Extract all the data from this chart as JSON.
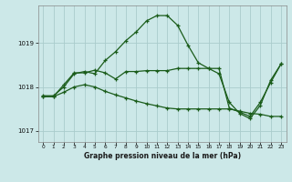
{
  "title": "Graphe pression niveau de la mer (hPa)",
  "background_color": "#cce8e8",
  "grid_color": "#aacccc",
  "line_color": "#1a5c1a",
  "xlim": [
    -0.5,
    23.5
  ],
  "ylim": [
    1016.75,
    1019.85
  ],
  "yticks": [
    1017,
    1018,
    1019
  ],
  "xticks": [
    0,
    1,
    2,
    3,
    4,
    5,
    6,
    7,
    8,
    9,
    10,
    11,
    12,
    13,
    14,
    15,
    16,
    17,
    18,
    19,
    20,
    21,
    22,
    23
  ],
  "series1_x": [
    0,
    1,
    2,
    3,
    4,
    5,
    6,
    7,
    8,
    9,
    10,
    11,
    12,
    13,
    14,
    15,
    16,
    17,
    18,
    19,
    20,
    21,
    22,
    23
  ],
  "series1_y": [
    1017.8,
    1017.8,
    1018.0,
    1018.3,
    1018.35,
    1018.3,
    1018.6,
    1018.8,
    1019.05,
    1019.25,
    1019.5,
    1019.62,
    1019.62,
    1019.4,
    1018.95,
    1018.55,
    1018.42,
    1018.3,
    1017.65,
    1017.4,
    1017.28,
    1017.58,
    1018.15,
    1018.52
  ],
  "series2_x": [
    0,
    1,
    2,
    3,
    4,
    5,
    6,
    7,
    8,
    9,
    10,
    11,
    12,
    13,
    14,
    15,
    16,
    17,
    18,
    19,
    20,
    21,
    22,
    23
  ],
  "series2_y": [
    1017.78,
    1017.78,
    1018.05,
    1018.32,
    1018.32,
    1018.38,
    1018.32,
    1018.18,
    1018.35,
    1018.35,
    1018.37,
    1018.37,
    1018.37,
    1018.42,
    1018.42,
    1018.42,
    1018.42,
    1018.42,
    1017.52,
    1017.43,
    1017.33,
    1017.65,
    1018.1,
    1018.52
  ],
  "series3_x": [
    0,
    1,
    2,
    3,
    4,
    5,
    6,
    7,
    8,
    9,
    10,
    11,
    12,
    13,
    14,
    15,
    16,
    17,
    18,
    19,
    20,
    21,
    22,
    23
  ],
  "series3_y": [
    1017.78,
    1017.78,
    1017.88,
    1018.0,
    1018.05,
    1018.0,
    1017.9,
    1017.82,
    1017.75,
    1017.68,
    1017.62,
    1017.57,
    1017.52,
    1017.5,
    1017.5,
    1017.5,
    1017.5,
    1017.5,
    1017.5,
    1017.45,
    1017.4,
    1017.38,
    1017.33,
    1017.33
  ]
}
